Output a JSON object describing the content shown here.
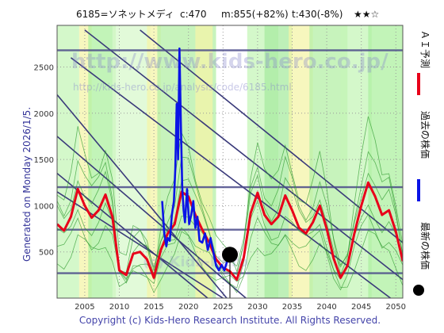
{
  "header": {
    "code_name": "6185=ソネットメディ",
    "current": "c:470",
    "medium": "m:855(+82%)",
    "target": "t:430(-8%)",
    "rating": "★★☆"
  },
  "side_left": "Generated on Monday 2026/1/5.",
  "legend": {
    "ai": "ＡＩ予測",
    "past": "過去の株価",
    "latest": "最新の株価"
  },
  "watermark": {
    "url": "http://www.kids-hero.co.jp/",
    "sub": "http://kids-hero.co.jp/analysis/code/6185.html",
    "copyright": "(c) Kids-Hero"
  },
  "footer": "Copyright (c) Kids-Hero Research Institute. All Rights Reserved.",
  "colors": {
    "ai_line": "#e8001a",
    "past_line": "#0a14e6",
    "band_light": "#aef0a0",
    "band_yellow": "#f4f4a8",
    "grid_text": "#333333",
    "axis_text": "#333366"
  },
  "chart_data": {
    "type": "line",
    "xlim": [
      2001,
      2051
    ],
    "ylim": [
      0,
      2950
    ],
    "x_ticks": [
      2005,
      2010,
      2015,
      2020,
      2025,
      2030,
      2035,
      2040,
      2045,
      2050
    ],
    "y_ticks": [
      500,
      1000,
      1500,
      2000,
      2500
    ],
    "horizontal_lines": [
      270,
      740,
      1200,
      2680
    ],
    "latest_point": {
      "x": 2026.0,
      "y": 470
    },
    "series": [
      {
        "name": "ＡＩ予測",
        "x": [
          2001,
          2002,
          2003,
          2004,
          2005,
          2006,
          2007,
          2008,
          2009,
          2010,
          2011,
          2012,
          2013,
          2014,
          2015,
          2016,
          2017,
          2018,
          2019,
          2020,
          2021,
          2022,
          2023,
          2024,
          2025,
          2026,
          2027,
          2028,
          2029,
          2030,
          2031,
          2032,
          2033,
          2034,
          2035,
          2036,
          2037,
          2038,
          2039,
          2040,
          2041,
          2042,
          2043,
          2044,
          2045,
          2046,
          2047,
          2048,
          2049,
          2050,
          2051
        ],
        "values": [
          800,
          730,
          880,
          1180,
          1000,
          870,
          950,
          1120,
          880,
          300,
          250,
          480,
          500,
          420,
          220,
          520,
          700,
          800,
          1150,
          1100,
          900,
          740,
          600,
          420,
          330,
          290,
          200,
          440,
          920,
          1140,
          900,
          800,
          880,
          1110,
          950,
          760,
          700,
          820,
          1000,
          750,
          430,
          220,
          350,
          700,
          1000,
          1250,
          1100,
          900,
          950,
          720,
          400
        ]
      },
      {
        "name": "過去の株価",
        "x": [
          2016.2,
          2016.5,
          2016.8,
          2017.0,
          2017.3,
          2017.6,
          2017.9,
          2018.1,
          2018.3,
          2018.5,
          2018.7,
          2018.9,
          2019.1,
          2019.3,
          2019.5,
          2019.8,
          2020.1,
          2020.4,
          2020.7,
          2021.0,
          2021.3,
          2021.6,
          2022.0,
          2022.4,
          2022.8,
          2023.2,
          2023.6,
          2024.0,
          2024.4,
          2024.8,
          2025.2,
          2025.6,
          2026.0
        ],
        "values": [
          1050,
          700,
          560,
          650,
          620,
          900,
          1050,
          1400,
          2100,
          1500,
          2700,
          1900,
          1200,
          950,
          820,
          1180,
          800,
          900,
          1050,
          760,
          880,
          620,
          600,
          700,
          520,
          650,
          500,
          350,
          300,
          360,
          300,
          400,
          470
        ]
      }
    ]
  }
}
